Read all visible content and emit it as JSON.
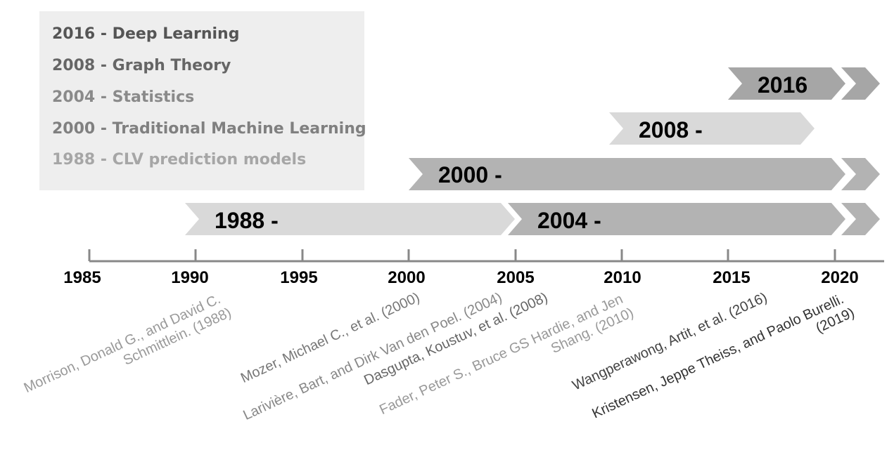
{
  "legend": [
    {
      "text": "2016 - Deep Learning",
      "color": "#555555"
    },
    {
      "text": "2008 - Graph Theory",
      "color": "#666666"
    },
    {
      "text": "2004 - Statistics",
      "color": "#8a8a8a"
    },
    {
      "text": "2000 - Traditional Machine Learning",
      "color": "#808080"
    },
    {
      "text": "1988 - CLV prediction models",
      "color": "#a6a6a6"
    }
  ],
  "arrows": [
    {
      "label": "2016",
      "color": "#a6a6a6"
    },
    {
      "label": "2008 -",
      "color": "#d9d9d9"
    },
    {
      "label": "2000 -",
      "color": "#b3b3b3"
    },
    {
      "label": "1988 -",
      "color": "#d9d9d9"
    },
    {
      "label": "2004 -",
      "color": "#b3b3b3"
    }
  ],
  "axis": {
    "ticks": [
      "1985",
      "1990",
      "1995",
      "2000",
      "2005",
      "2010",
      "2015",
      "2020"
    ],
    "color": "#888888"
  },
  "citations": [
    {
      "lines": [
        "Morrison, Donald G., and David C.",
        "Schmittlein. (1988)"
      ],
      "color": "#999999"
    },
    {
      "lines": [
        "Mozer, Michael C., et al. (2000)"
      ],
      "color": "#777777"
    },
    {
      "lines": [
        "Larivière, Bart, and Dirk Van den Poel. (2004)"
      ],
      "color": "#888888"
    },
    {
      "lines": [
        "Dasgupta, Koustuv, et al. (2008)"
      ],
      "color": "#666666"
    },
    {
      "lines": [
        "Fader, Peter S., Bruce GS Hardie, and Jen",
        "Shang. (2010)"
      ],
      "color": "#999999"
    },
    {
      "lines": [
        "Wangperawong, Artit, et al. (2016)"
      ],
      "color": "#444444"
    },
    {
      "lines": [
        "Kristensen, Jeppe Theiss, and Paolo Burelli.",
        "(2019)"
      ],
      "color": "#333333"
    }
  ]
}
